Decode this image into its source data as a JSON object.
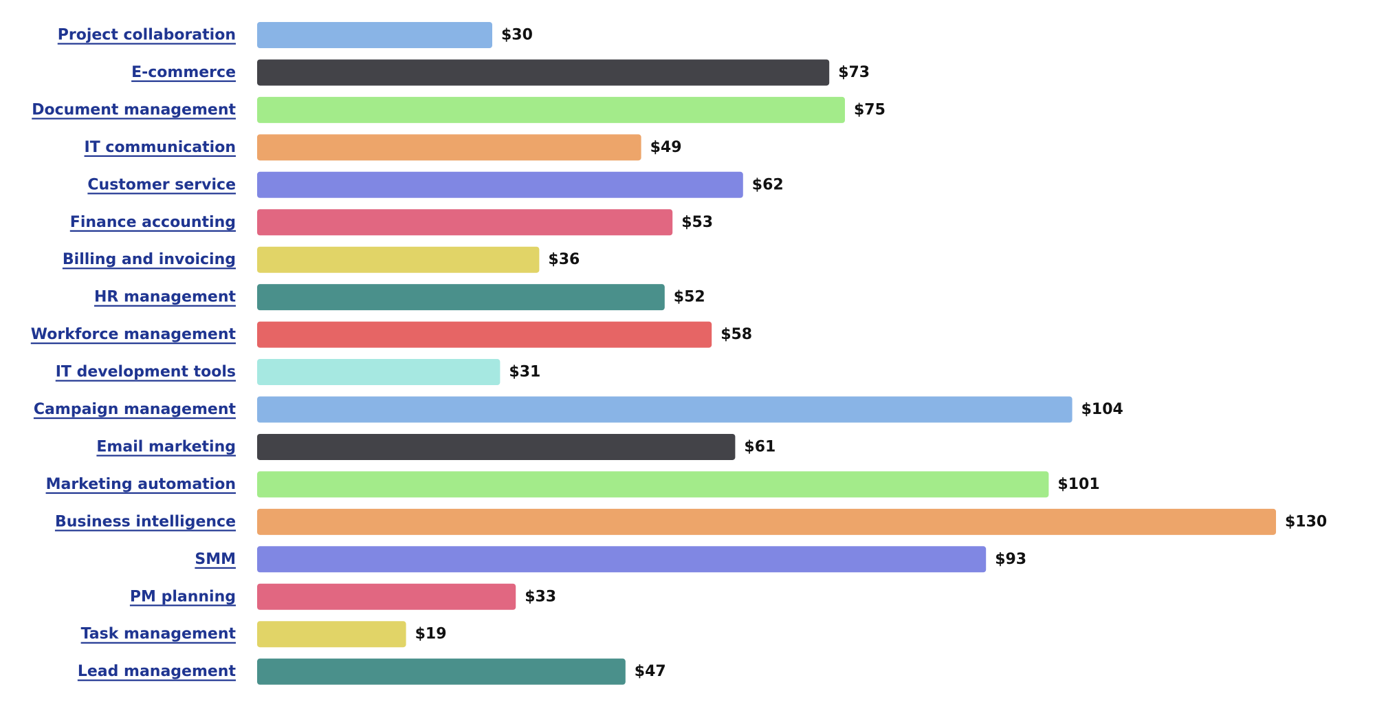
{
  "chart_data": {
    "type": "bar",
    "orientation": "horizontal",
    "value_prefix": "$",
    "grid": false,
    "categories": [
      "Project collaboration",
      "E-commerce",
      "Document management",
      "IT communication",
      "Customer service",
      "Finance accounting",
      "Billing and invoicing",
      "HR management",
      "Workforce management",
      "IT development tools",
      "Campaign management",
      "Email marketing",
      "Marketing automation",
      "Business intelligence",
      "SMM",
      "PM planning",
      "Task management",
      "Lead management"
    ],
    "values": [
      30,
      73,
      75,
      49,
      62,
      53,
      36,
      52,
      58,
      31,
      104,
      61,
      101,
      130,
      93,
      33,
      19,
      47
    ],
    "value_labels": [
      "$30",
      "$73",
      "$75",
      "$49",
      "$62",
      "$53",
      "$36",
      "$52",
      "$58",
      "$31",
      "$104",
      "$61",
      "$101",
      "$130",
      "$93",
      "$33",
      "$19",
      "$47"
    ],
    "colors": [
      "#89b4e6",
      "#434348",
      "#a3eb8a",
      "#eda56a",
      "#8087e3",
      "#e16781",
      "#e1d467",
      "#4a908b",
      "#e66565",
      "#a6e8e1",
      "#89b4e6",
      "#434348",
      "#a3eb8a",
      "#eda56a",
      "#8087e3",
      "#e16781",
      "#e1d467",
      "#4a908b"
    ],
    "xlim": [
      0,
      130
    ]
  }
}
